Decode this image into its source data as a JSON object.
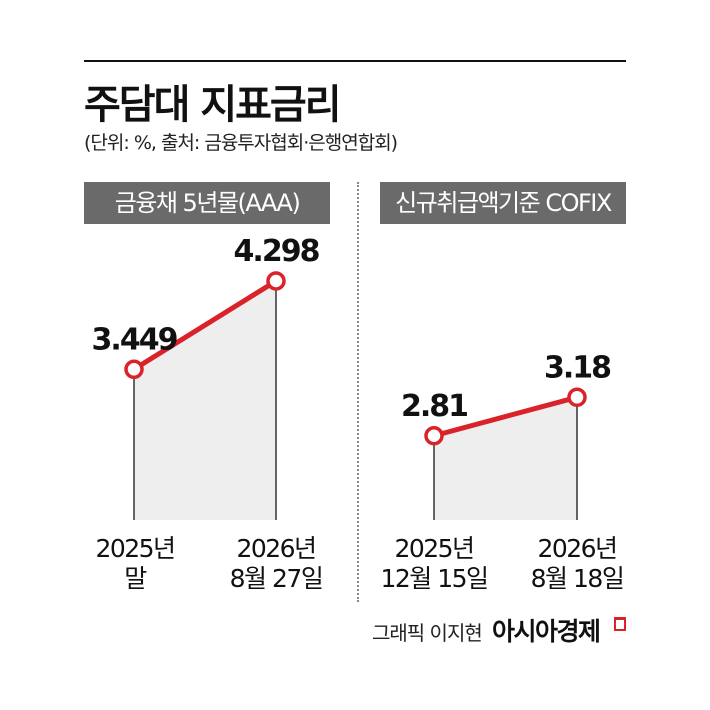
{
  "title": "주담대 지표금리",
  "subtitle": "(단위: %, 출처: 금융투자협회·은행연합회)",
  "colors": {
    "line": "#d9222a",
    "area": "#eeeeee",
    "label_bg": "#6a6a6a"
  },
  "chart_data": [
    {
      "type": "area",
      "title": "금융채 5년물(AAA)",
      "categories": [
        "2025년\n말",
        "2026년\n8월 27일"
      ],
      "values": [
        3.449,
        4.298
      ],
      "value_labels": [
        "3.449",
        "4.298"
      ],
      "unit": "%",
      "grid": false,
      "legend": "none"
    },
    {
      "type": "area",
      "title": "신규취급액기준 COFIX",
      "categories": [
        "2025년\n12월 15일",
        "2026년\n8월 18일"
      ],
      "values": [
        2.81,
        3.18
      ],
      "value_labels": [
        "2.81",
        "3.18"
      ],
      "unit": "%",
      "grid": false,
      "legend": "none"
    }
  ],
  "footer": {
    "credit": "그래픽 이지현",
    "brand": "아시아경제",
    "brand_icon": "brand-corner-mark"
  }
}
